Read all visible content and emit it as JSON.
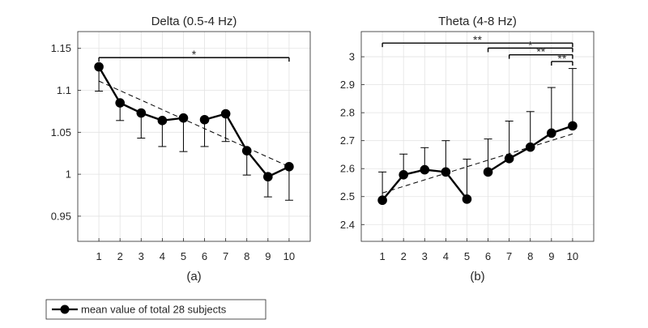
{
  "chart_data": [
    {
      "type": "line",
      "title": "Delta (0.5-4 Hz)",
      "sublabel": "(a)",
      "xlabel": "",
      "ylabel": "",
      "x": [
        1,
        2,
        3,
        4,
        5,
        6,
        7,
        8,
        9,
        10
      ],
      "xlim": [
        0,
        11
      ],
      "ylim": [
        0.92,
        1.17
      ],
      "yticks": [
        0.95,
        1,
        1.05,
        1.1,
        1.15
      ],
      "ytick_labels": [
        "0.95",
        "1",
        "1.05",
        "1.1",
        "1.15"
      ],
      "grid": true,
      "series": [
        {
          "name": "mean value of total 28 subjects",
          "values": [
            1.128,
            1.085,
            1.073,
            1.064,
            1.067,
            1.065,
            1.072,
            1.028,
            0.997,
            1.009
          ],
          "err_lower": [
            1.099,
            1.064,
            1.043,
            1.033,
            1.027,
            1.033,
            1.039,
            0.999,
            0.973,
            0.969
          ],
          "segments": [
            [
              1,
              5
            ],
            [
              6,
              10
            ]
          ]
        }
      ],
      "trend_line": [
        [
          1,
          1.111
        ],
        [
          10,
          1.009
        ]
      ],
      "significance": [
        {
          "from": 1,
          "to": 10,
          "label": "*",
          "y": 1.139
        }
      ]
    },
    {
      "type": "line",
      "title": "Theta (4-8 Hz)",
      "sublabel": "(b)",
      "xlabel": "",
      "ylabel": "",
      "x": [
        1,
        2,
        3,
        4,
        5,
        6,
        7,
        8,
        9,
        10
      ],
      "xlim": [
        0,
        11
      ],
      "ylim": [
        2.34,
        3.09
      ],
      "yticks": [
        2.4,
        2.5,
        2.6,
        2.7,
        2.8,
        2.9,
        3.0
      ],
      "ytick_labels": [
        "2.4",
        "2.5",
        "2.6",
        "2.7",
        "2.8",
        "2.9",
        "3"
      ],
      "grid": true,
      "series": [
        {
          "name": "mean value of total 28 subjects",
          "values": [
            2.487,
            2.578,
            2.596,
            2.588,
            2.491,
            2.588,
            2.636,
            2.677,
            2.727,
            2.753
          ],
          "err_upper": [
            2.588,
            2.652,
            2.675,
            2.7,
            2.634,
            2.706,
            2.77,
            2.804,
            2.89,
            2.958
          ],
          "segments": [
            [
              1,
              5
            ],
            [
              6,
              10
            ]
          ]
        }
      ],
      "trend_line": [
        [
          1,
          2.513
        ],
        [
          10,
          2.724
        ]
      ],
      "significance": [
        {
          "from": 1,
          "to": 10,
          "label": "**",
          "y": 3.049
        },
        {
          "from": 6,
          "to": 10,
          "label": "*",
          "y": 3.031
        },
        {
          "from": 7,
          "to": 10,
          "label": "**",
          "y": 3.007
        },
        {
          "from": 9,
          "to": 10,
          "label": "**",
          "y": 2.983
        }
      ]
    }
  ],
  "legend": {
    "label": "mean value of total 28 subjects",
    "placement": "bottom-left"
  }
}
